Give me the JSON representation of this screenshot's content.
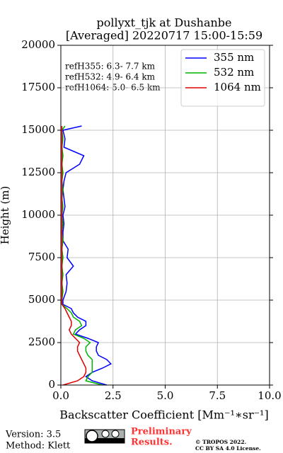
{
  "chart_data": {
    "type": "line",
    "title": "pollyxt_tjk at Dushanbe",
    "subtitle": "[Averaged] 20220717 15:00-15:59",
    "x_label": "Backscatter Coefficient [Mm⁻¹∗sr⁻¹]",
    "y_label": "Height (m)",
    "annotations": [
      "refH355:  6.3- 7.7 km",
      "refH532:  4.9- 6.4 km",
      "refH1064:  5.0- 6.5 km"
    ],
    "heights": [
      0,
      250,
      500,
      750,
      1000,
      1250,
      1500,
      1750,
      2000,
      2250,
      2500,
      2750,
      3000,
      3250,
      3500,
      3750,
      4000,
      4250,
      4500,
      4750,
      5000,
      5500,
      6000,
      6500,
      7000,
      7500,
      8000,
      8500,
      9000,
      9500,
      10000,
      10500,
      11000,
      11500,
      12000,
      12500,
      13000,
      13500,
      14000,
      14500,
      15000,
      15250
    ],
    "series": [
      {
        "name": "355 nm",
        "color": "#0000ff",
        "values": [
          2.2,
          1.5,
          1.2,
          1.5,
          2.0,
          2.4,
          2.2,
          1.8,
          1.7,
          1.7,
          1.8,
          1.3,
          0.7,
          0.9,
          1.2,
          1.2,
          0.8,
          0.6,
          0.5,
          0.1,
          0.1,
          0.25,
          0.3,
          0.25,
          0.6,
          0.3,
          0.35,
          0.1,
          0.1,
          0.15,
          0.1,
          0.2,
          0.15,
          0.1,
          0.15,
          0.25,
          0.9,
          1.1,
          0.15,
          0.2,
          0.1,
          1.0
        ]
      },
      {
        "name": "532 nm",
        "color": "#00b400",
        "values": [
          2.0,
          1.2,
          1.3,
          1.5,
          1.5,
          1.5,
          1.5,
          1.3,
          1.2,
          1.2,
          1.4,
          1.1,
          0.6,
          0.7,
          1.0,
          0.9,
          0.6,
          0.5,
          0.3,
          0.05,
          0.05,
          0.1,
          0.05,
          0.1,
          0.05,
          0.1,
          0.05,
          0.1,
          0.05,
          0.1,
          0.05,
          0.1,
          0.05,
          0.1,
          0.05,
          0.1,
          0.05,
          0.1,
          0.05,
          0.1,
          0.05,
          0.2
        ]
      },
      {
        "name": "1064 nm",
        "color": "#e00000",
        "values": [
          0.1,
          0.8,
          1.1,
          1.2,
          1.2,
          1.1,
          1.0,
          0.9,
          0.8,
          0.8,
          0.9,
          0.7,
          0.5,
          0.4,
          0.5,
          0.5,
          0.4,
          0.3,
          0.2,
          0.05,
          0.05,
          0.05,
          0.05,
          0.05,
          0.05,
          0.05,
          0.05,
          0.05,
          0.05,
          0.05,
          0.05,
          0.05,
          0.05,
          0.05,
          0.05,
          0.05,
          0.05,
          0.05,
          0.05,
          0.05,
          0.05,
          0.05
        ]
      }
    ],
    "xlim": [
      0,
      10
    ],
    "xticks": [
      {
        "value": 0,
        "label": "0.0"
      },
      {
        "value": 2.5,
        "label": "2.5"
      },
      {
        "value": 5,
        "label": "5.0"
      },
      {
        "value": 7.5,
        "label": "7.5"
      },
      {
        "value": 10,
        "label": "10.0"
      }
    ],
    "ylim": [
      0,
      20000
    ],
    "yticks": [
      0,
      2500,
      5000,
      7500,
      10000,
      12500,
      15000,
      17500,
      20000
    ],
    "grid": true,
    "legend": "upper right"
  },
  "footer": {
    "version": "Version: 3.5",
    "method": "Method: Klett",
    "notice": [
      "Preliminary",
      "Results."
    ],
    "copyright": [
      "© TROPOS 2022.",
      "CC BY SA 4.0 License."
    ]
  }
}
